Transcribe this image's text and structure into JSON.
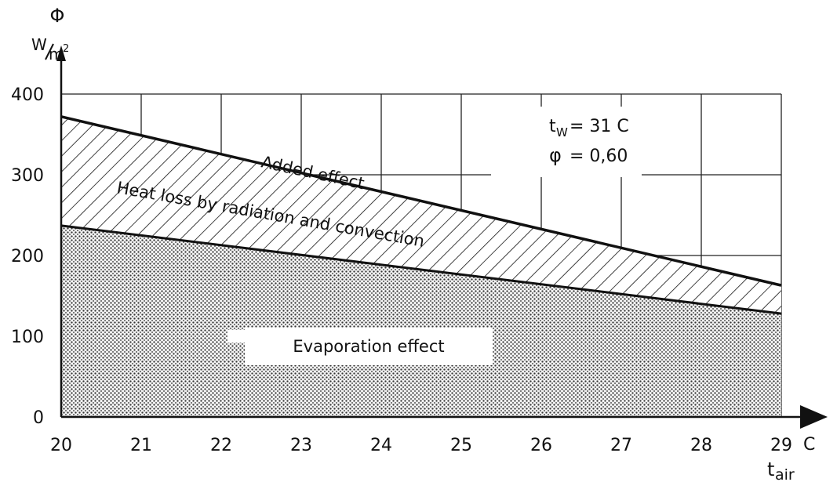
{
  "chart_data": {
    "type": "area",
    "y_symbol": "Φ",
    "y_unit_numerator": "W",
    "y_unit_denominator": "m",
    "y_unit_exponent": "2",
    "x_unit": "C",
    "x_symbol": "t",
    "x_symbol_subscript": "air",
    "x": [
      20,
      29
    ],
    "xlim": [
      20,
      29
    ],
    "ylim": [
      0,
      400
    ],
    "x_ticks": [
      "20",
      "21",
      "22",
      "23",
      "24",
      "25",
      "26",
      "27",
      "28",
      "29"
    ],
    "y_ticks": [
      "0",
      "100",
      "200",
      "300",
      "400"
    ],
    "grid": true,
    "series": [
      {
        "values": [
          237,
          128
        ],
        "fill": "dots"
      },
      {
        "values": [
          372,
          163
        ],
        "fill": "hatch"
      }
    ],
    "annotations": {
      "added": "Added effect",
      "heat_loss": "Heat loss by radiation and convection",
      "evaporation": "Evaporation effect",
      "tw_symbol": "t",
      "tw_subscript": "W",
      "tw_value": "= 31 C",
      "phi_symbol": "φ",
      "phi_value": "= 0,60"
    }
  }
}
